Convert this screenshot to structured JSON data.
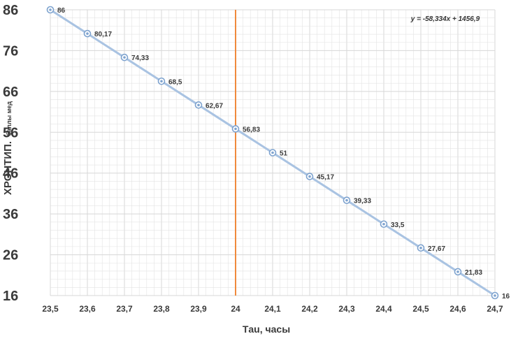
{
  "chart_data": {
    "type": "scatter",
    "title": "",
    "xlabel": "Тau, часы",
    "ylabel_main": "ХРОНТИП.",
    "ylabel_sub": "баллы мед",
    "x": [
      23.5,
      23.6,
      23.7,
      23.8,
      23.9,
      24.0,
      24.1,
      24.2,
      24.3,
      24.4,
      24.5,
      24.6,
      24.7
    ],
    "y": [
      86,
      80.17,
      74.33,
      68.5,
      62.67,
      56.83,
      51,
      45.17,
      39.33,
      33.5,
      27.67,
      21.83,
      16
    ],
    "point_labels": [
      "86",
      "80,17",
      "74,33",
      "68,5",
      "62,67",
      "56,83",
      "51",
      "45,17",
      "39,33",
      "33,5",
      "27,67",
      "21,83",
      "16"
    ],
    "xlim": [
      23.5,
      24.7
    ],
    "ylim": [
      16,
      86
    ],
    "x_ticks": [
      23.5,
      23.6,
      23.7,
      23.8,
      23.9,
      24.0,
      24.1,
      24.2,
      24.3,
      24.4,
      24.5,
      24.6,
      24.7
    ],
    "x_tick_labels": [
      "23,5",
      "23,6",
      "23,7",
      "23,8",
      "23,9",
      "24",
      "24,1",
      "24,2",
      "24,3",
      "24,4",
      "24,5",
      "24,6",
      "24,7"
    ],
    "y_ticks": [
      16,
      26,
      36,
      46,
      56,
      66,
      76,
      86
    ],
    "y_tick_labels": [
      "16",
      "26",
      "36",
      "46",
      "56",
      "66",
      "76",
      "86"
    ],
    "trendline_equation": "y = -58,334x + 1456,9",
    "vertical_marker_x": 24.0,
    "grid": true,
    "colors": {
      "line": "#a9c3e2",
      "marker": "#7ea3cf",
      "vertical_marker": "#f08a3c",
      "grid": "#e3e3e3"
    }
  }
}
